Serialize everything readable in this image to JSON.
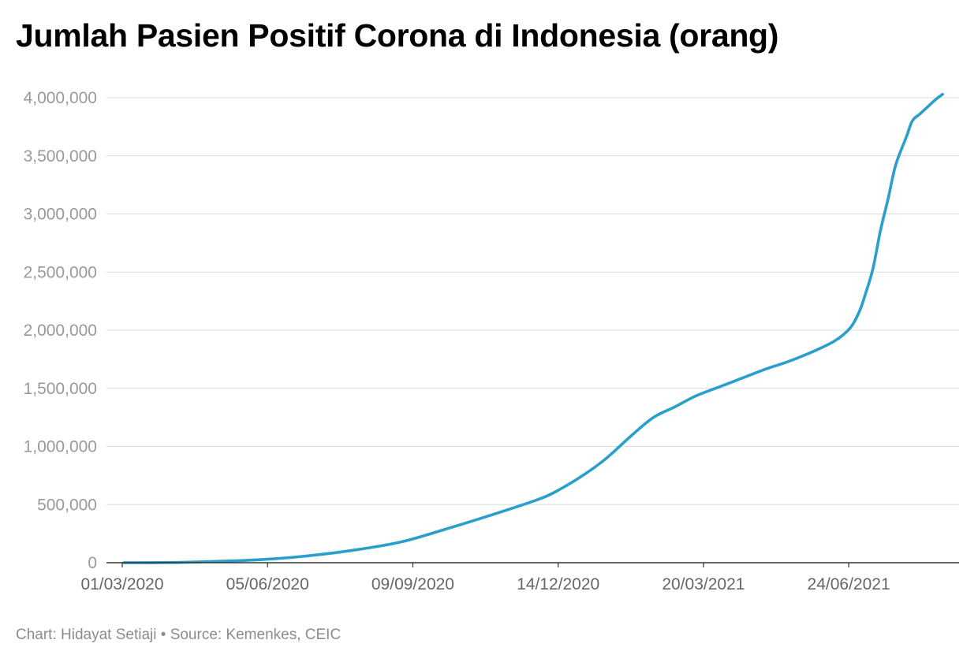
{
  "chart_data": {
    "type": "line",
    "title": "Jumlah Pasien Positif Corona di Indonesia (orang)",
    "xlabel": "",
    "ylabel": "",
    "credit": {
      "chart_by": "Chart: Hidayat Setiaji",
      "separator": "•",
      "source": "Source: Kemenkes, CEIC"
    },
    "x_tick_labels": [
      "01/03/2020",
      "05/06/2020",
      "09/09/2020",
      "14/12/2020",
      "20/03/2021",
      "24/06/2021"
    ],
    "y_tick_labels": [
      "0",
      "500,000",
      "1,000,000",
      "1,500,000",
      "2,000,000",
      "2,500,000",
      "3,000,000",
      "3,500,000",
      "4,000,000"
    ],
    "x_range": [
      "2020-03-01",
      "2021-08-26"
    ],
    "ylim": [
      0,
      4000000
    ],
    "grid": true,
    "line_color": "#2a9fcb",
    "series": [
      {
        "x": [
          "2020-03-02",
          "2020-04-01",
          "2020-05-01",
          "2020-06-01",
          "2020-07-01",
          "2020-08-01",
          "2020-09-01",
          "2020-10-01",
          "2020-11-01",
          "2020-12-01",
          "2020-12-15",
          "2021-01-01",
          "2021-01-15",
          "2021-02-01",
          "2021-02-15",
          "2021-03-01",
          "2021-03-15",
          "2021-04-01",
          "2021-04-15",
          "2021-05-01",
          "2021-05-15",
          "2021-06-01",
          "2021-06-15",
          "2021-06-25",
          "2021-07-01",
          "2021-07-05",
          "2021-07-10",
          "2021-07-15",
          "2021-07-20",
          "2021-07-25",
          "2021-08-01",
          "2021-08-05",
          "2021-08-10",
          "2021-08-15",
          "2021-08-20",
          "2021-08-25"
        ],
        "y": [
          2,
          1700,
          11000,
          27000,
          58000,
          108000,
          178000,
          290000,
          415000,
          545000,
          630000,
          765000,
          900000,
          1100000,
          1250000,
          1340000,
          1435000,
          1520000,
          1590000,
          1670000,
          1730000,
          1820000,
          1910000,
          2020000,
          2160000,
          2310000,
          2530000,
          2860000,
          3130000,
          3420000,
          3660000,
          3800000,
          3860000,
          3920000,
          3980000,
          4030000
        ]
      }
    ]
  }
}
